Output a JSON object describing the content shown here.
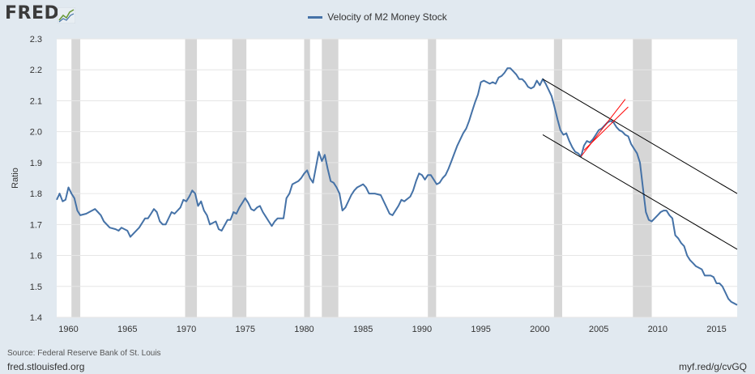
{
  "branding": {
    "logo_text": "FRED",
    "logo_icon": "line-chart-icon"
  },
  "footer": {
    "source": "Source: Federal Reserve Bank of St. Louis",
    "site": "fred.stlouisfed.org",
    "short_link": "myf.red/g/cvGQ"
  },
  "colors": {
    "series": "#4572a7",
    "recession": "#d6d6d6",
    "plot_bg": "#ffffff",
    "page_bg": "#e1e9f0",
    "channel_lines": "#000000",
    "highlight_lines": "#ff0000"
  },
  "chart_data": {
    "type": "line",
    "title": "",
    "xlabel": "",
    "ylabel": "Ratio",
    "xlim": [
      1959.0,
      2016.75
    ],
    "ylim": [
      1.4,
      2.3
    ],
    "grid": true,
    "legend_position": "top-center",
    "x_ticks": [
      1960,
      1965,
      1970,
      1975,
      1980,
      1985,
      1990,
      1995,
      2000,
      2005,
      2010,
      2015
    ],
    "y_ticks": [
      1.4,
      1.5,
      1.6,
      1.7,
      1.8,
      1.9,
      2.0,
      2.1,
      2.2,
      2.3
    ],
    "recessions": [
      [
        1960.25,
        1961.0
      ],
      [
        1969.9,
        1970.9
      ],
      [
        1973.9,
        1975.1
      ],
      [
        1980.0,
        1980.5
      ],
      [
        1981.5,
        1982.9
      ],
      [
        1990.5,
        1991.2
      ],
      [
        2001.2,
        2001.9
      ],
      [
        2007.9,
        2009.5
      ]
    ],
    "series": [
      {
        "name": "Velocity of M2 Money Stock",
        "color": "#4572a7",
        "points": [
          [
            1959.0,
            1.78
          ],
          [
            1959.25,
            1.8
          ],
          [
            1959.5,
            1.775
          ],
          [
            1959.75,
            1.78
          ],
          [
            1960.0,
            1.82
          ],
          [
            1960.25,
            1.8
          ],
          [
            1960.5,
            1.785
          ],
          [
            1960.75,
            1.745
          ],
          [
            1961.0,
            1.73
          ],
          [
            1961.5,
            1.735
          ],
          [
            1962.0,
            1.745
          ],
          [
            1962.25,
            1.75
          ],
          [
            1962.5,
            1.74
          ],
          [
            1962.75,
            1.73
          ],
          [
            1963.0,
            1.71
          ],
          [
            1963.5,
            1.69
          ],
          [
            1964.0,
            1.685
          ],
          [
            1964.25,
            1.68
          ],
          [
            1964.5,
            1.69
          ],
          [
            1965.0,
            1.68
          ],
          [
            1965.25,
            1.66
          ],
          [
            1965.5,
            1.67
          ],
          [
            1966.0,
            1.69
          ],
          [
            1966.5,
            1.72
          ],
          [
            1966.75,
            1.72
          ],
          [
            1967.0,
            1.735
          ],
          [
            1967.25,
            1.75
          ],
          [
            1967.5,
            1.74
          ],
          [
            1967.75,
            1.71
          ],
          [
            1968.0,
            1.7
          ],
          [
            1968.25,
            1.7
          ],
          [
            1968.75,
            1.74
          ],
          [
            1969.0,
            1.735
          ],
          [
            1969.5,
            1.755
          ],
          [
            1969.75,
            1.78
          ],
          [
            1970.0,
            1.775
          ],
          [
            1970.25,
            1.79
          ],
          [
            1970.5,
            1.81
          ],
          [
            1970.75,
            1.8
          ],
          [
            1971.0,
            1.76
          ],
          [
            1971.25,
            1.775
          ],
          [
            1971.5,
            1.745
          ],
          [
            1971.75,
            1.73
          ],
          [
            1972.0,
            1.7
          ],
          [
            1972.5,
            1.71
          ],
          [
            1972.75,
            1.685
          ],
          [
            1973.0,
            1.68
          ],
          [
            1973.5,
            1.715
          ],
          [
            1973.75,
            1.715
          ],
          [
            1974.0,
            1.74
          ],
          [
            1974.25,
            1.735
          ],
          [
            1974.5,
            1.755
          ],
          [
            1974.75,
            1.77
          ],
          [
            1975.0,
            1.785
          ],
          [
            1975.25,
            1.77
          ],
          [
            1975.5,
            1.75
          ],
          [
            1975.75,
            1.745
          ],
          [
            1976.0,
            1.755
          ],
          [
            1976.25,
            1.76
          ],
          [
            1976.5,
            1.74
          ],
          [
            1976.75,
            1.725
          ],
          [
            1977.0,
            1.71
          ],
          [
            1977.25,
            1.695
          ],
          [
            1977.5,
            1.71
          ],
          [
            1977.75,
            1.72
          ],
          [
            1978.0,
            1.72
          ],
          [
            1978.25,
            1.72
          ],
          [
            1978.5,
            1.785
          ],
          [
            1978.75,
            1.8
          ],
          [
            1979.0,
            1.83
          ],
          [
            1979.5,
            1.84
          ],
          [
            1979.75,
            1.85
          ],
          [
            1980.0,
            1.865
          ],
          [
            1980.25,
            1.875
          ],
          [
            1980.5,
            1.85
          ],
          [
            1980.75,
            1.835
          ],
          [
            1981.0,
            1.885
          ],
          [
            1981.25,
            1.935
          ],
          [
            1981.5,
            1.905
          ],
          [
            1981.75,
            1.925
          ],
          [
            1982.0,
            1.88
          ],
          [
            1982.25,
            1.84
          ],
          [
            1982.5,
            1.835
          ],
          [
            1982.75,
            1.82
          ],
          [
            1983.0,
            1.8
          ],
          [
            1983.25,
            1.745
          ],
          [
            1983.5,
            1.755
          ],
          [
            1984.0,
            1.795
          ],
          [
            1984.25,
            1.81
          ],
          [
            1984.5,
            1.82
          ],
          [
            1984.75,
            1.825
          ],
          [
            1985.0,
            1.83
          ],
          [
            1985.25,
            1.82
          ],
          [
            1985.5,
            1.8
          ],
          [
            1985.75,
            1.8
          ],
          [
            1986.0,
            1.8
          ],
          [
            1986.5,
            1.795
          ],
          [
            1987.0,
            1.755
          ],
          [
            1987.25,
            1.735
          ],
          [
            1987.5,
            1.73
          ],
          [
            1987.75,
            1.745
          ],
          [
            1988.0,
            1.76
          ],
          [
            1988.25,
            1.78
          ],
          [
            1988.5,
            1.775
          ],
          [
            1989.0,
            1.79
          ],
          [
            1989.25,
            1.81
          ],
          [
            1989.5,
            1.84
          ],
          [
            1989.75,
            1.865
          ],
          [
            1990.0,
            1.86
          ],
          [
            1990.25,
            1.845
          ],
          [
            1990.5,
            1.86
          ],
          [
            1990.75,
            1.86
          ],
          [
            1991.0,
            1.845
          ],
          [
            1991.25,
            1.83
          ],
          [
            1991.5,
            1.835
          ],
          [
            1991.75,
            1.85
          ],
          [
            1992.0,
            1.86
          ],
          [
            1992.25,
            1.88
          ],
          [
            1992.5,
            1.905
          ],
          [
            1992.75,
            1.93
          ],
          [
            1993.0,
            1.955
          ],
          [
            1993.5,
            1.995
          ],
          [
            1993.75,
            2.01
          ],
          [
            1994.0,
            2.035
          ],
          [
            1994.25,
            2.065
          ],
          [
            1994.5,
            2.095
          ],
          [
            1994.75,
            2.12
          ],
          [
            1995.0,
            2.16
          ],
          [
            1995.25,
            2.165
          ],
          [
            1995.5,
            2.16
          ],
          [
            1995.75,
            2.155
          ],
          [
            1996.0,
            2.16
          ],
          [
            1996.25,
            2.155
          ],
          [
            1996.5,
            2.175
          ],
          [
            1996.75,
            2.18
          ],
          [
            1997.0,
            2.19
          ],
          [
            1997.25,
            2.205
          ],
          [
            1997.5,
            2.205
          ],
          [
            1997.75,
            2.195
          ],
          [
            1998.0,
            2.185
          ],
          [
            1998.25,
            2.17
          ],
          [
            1998.5,
            2.17
          ],
          [
            1998.75,
            2.16
          ],
          [
            1999.0,
            2.145
          ],
          [
            1999.25,
            2.14
          ],
          [
            1999.5,
            2.145
          ],
          [
            1999.75,
            2.165
          ],
          [
            2000.0,
            2.15
          ],
          [
            2000.25,
            2.17
          ],
          [
            2000.5,
            2.155
          ],
          [
            2000.75,
            2.135
          ],
          [
            2001.0,
            2.115
          ],
          [
            2001.25,
            2.08
          ],
          [
            2001.5,
            2.04
          ],
          [
            2001.75,
            2.005
          ],
          [
            2002.0,
            1.99
          ],
          [
            2002.25,
            1.995
          ],
          [
            2002.5,
            1.97
          ],
          [
            2002.75,
            1.95
          ],
          [
            2003.0,
            1.935
          ],
          [
            2003.25,
            1.93
          ],
          [
            2003.5,
            1.92
          ],
          [
            2003.75,
            1.955
          ],
          [
            2004.0,
            1.97
          ],
          [
            2004.25,
            1.965
          ],
          [
            2004.5,
            1.975
          ],
          [
            2004.75,
            1.99
          ],
          [
            2005.0,
            2.005
          ],
          [
            2005.25,
            2.01
          ],
          [
            2005.5,
            2.02
          ],
          [
            2005.75,
            2.03
          ],
          [
            2006.0,
            2.035
          ],
          [
            2006.25,
            2.03
          ],
          [
            2006.5,
            2.015
          ],
          [
            2006.75,
            2.005
          ],
          [
            2007.0,
            2.0
          ],
          [
            2007.25,
            1.99
          ],
          [
            2007.5,
            1.985
          ],
          [
            2007.75,
            1.96
          ],
          [
            2008.0,
            1.945
          ],
          [
            2008.25,
            1.93
          ],
          [
            2008.5,
            1.9
          ],
          [
            2008.75,
            1.82
          ],
          [
            2009.0,
            1.74
          ],
          [
            2009.25,
            1.715
          ],
          [
            2009.5,
            1.71
          ],
          [
            2009.75,
            1.72
          ],
          [
            2010.0,
            1.73
          ],
          [
            2010.25,
            1.74
          ],
          [
            2010.5,
            1.745
          ],
          [
            2010.75,
            1.745
          ],
          [
            2011.0,
            1.73
          ],
          [
            2011.25,
            1.72
          ],
          [
            2011.5,
            1.665
          ],
          [
            2011.75,
            1.655
          ],
          [
            2012.0,
            1.64
          ],
          [
            2012.25,
            1.63
          ],
          [
            2012.5,
            1.6
          ],
          [
            2012.75,
            1.585
          ],
          [
            2013.0,
            1.575
          ],
          [
            2013.25,
            1.565
          ],
          [
            2013.5,
            1.56
          ],
          [
            2013.75,
            1.555
          ],
          [
            2014.0,
            1.535
          ],
          [
            2014.25,
            1.535
          ],
          [
            2014.5,
            1.535
          ],
          [
            2014.75,
            1.53
          ],
          [
            2015.0,
            1.51
          ],
          [
            2015.25,
            1.51
          ],
          [
            2015.5,
            1.5
          ],
          [
            2015.75,
            1.48
          ],
          [
            2016.0,
            1.46
          ],
          [
            2016.25,
            1.45
          ],
          [
            2016.5,
            1.445
          ],
          [
            2016.75,
            1.44
          ]
        ]
      }
    ],
    "annotations": [
      {
        "type": "line",
        "color": "#000000",
        "from": [
          2000.25,
          2.17
        ],
        "to": [
          2016.75,
          1.8
        ]
      },
      {
        "type": "line",
        "color": "#000000",
        "from": [
          2000.25,
          1.99
        ],
        "to": [
          2016.75,
          1.62
        ]
      },
      {
        "type": "line",
        "color": "#ff0000",
        "from": [
          2003.5,
          1.92
        ],
        "to": [
          2007.25,
          2.105
        ]
      },
      {
        "type": "line",
        "color": "#ff0000",
        "from": [
          2003.75,
          1.94
        ],
        "to": [
          2007.5,
          2.08
        ]
      }
    ]
  }
}
